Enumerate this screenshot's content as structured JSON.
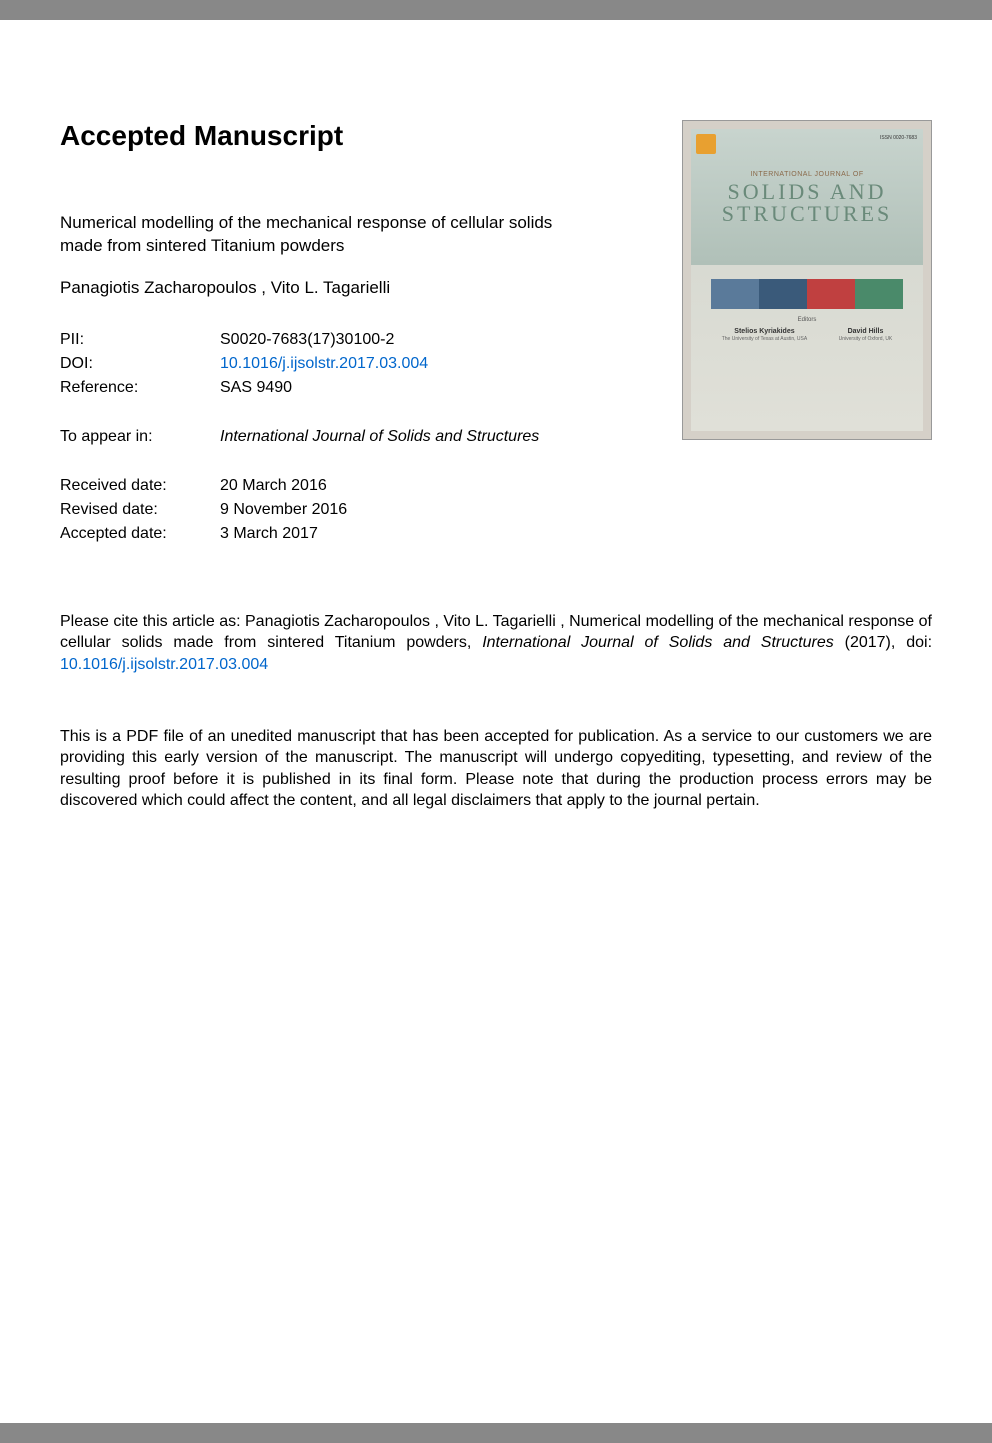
{
  "heading": "Accepted Manuscript",
  "title": "Numerical modelling of the mechanical response of cellular solids made from sintered Titanium powders",
  "authors": " Panagiotis Zacharopoulos ,  Vito L. Tagarielli",
  "meta": {
    "pii_label": "PII:",
    "pii_value": "S0020-7683(17)30100-2",
    "doi_label": "DOI:",
    "doi_value": "10.1016/j.ijsolstr.2017.03.004",
    "ref_label": "Reference:",
    "ref_value": "SAS 9490",
    "appear_label": "To appear in:",
    "appear_value": "International Journal of Solids and Structures",
    "received_label": "Received date:",
    "received_value": "20 March 2016",
    "revised_label": "Revised date:",
    "revised_value": "9 November 2016",
    "accepted_label": "Accepted date:",
    "accepted_value": "3 March 2017"
  },
  "citation": {
    "prefix": "Please cite this article as:  Panagiotis Zacharopoulos ,  Vito L. Tagarielli , Numerical modelling of the mechanical response of cellular solids made from sintered Titanium powders, ",
    "journal": "International Journal of Solids and Structures",
    "year": " (2017), doi: ",
    "doi": "10.1016/j.ijsolstr.2017.03.004"
  },
  "disclaimer": "This is a PDF file of an unedited manuscript that has been accepted for publication. As a service to our customers we are providing this early version of the manuscript. The manuscript will undergo copyediting, typesetting, and review of the resulting proof before it is published in its final form. Please note that during the production process errors may be discovered which could affect the content, and all legal disclaimers that apply to the journal pertain.",
  "cover": {
    "issn": "ISSN 0020-7683",
    "pretitle": "INTERNATIONAL JOURNAL OF",
    "title_line1": "SOLIDS AND",
    "title_line2": "STRUCTURES",
    "band_colors": [
      "#5a7a9a",
      "#3a5a7a",
      "#c04040",
      "#4a8a6a"
    ],
    "editors_label": "Editors",
    "editor1_name": "Stelios Kyriakides",
    "editor1_aff": "The University of Texas at Austin, USA",
    "editor2_name": "David Hills",
    "editor2_aff": "University of Oxford, UK"
  },
  "colors": {
    "link": "#0066cc",
    "text": "#000000",
    "page_bg": "#ffffff"
  }
}
